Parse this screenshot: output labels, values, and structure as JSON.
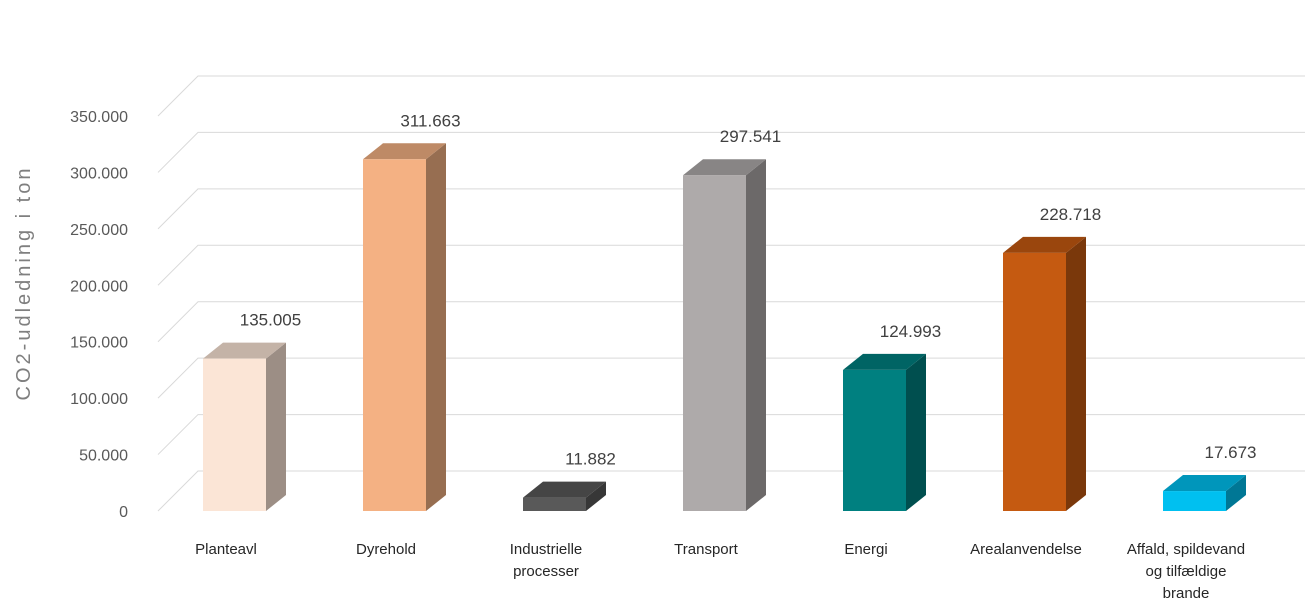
{
  "chart_data": {
    "type": "bar",
    "style": "3d-column",
    "title": "",
    "xlabel": "",
    "ylabel": "CO2-udledning i ton",
    "ylim": [
      0,
      350000
    ],
    "y_ticks": [
      0,
      50000,
      100000,
      150000,
      200000,
      250000,
      300000,
      350000
    ],
    "y_tick_labels": [
      "0",
      "50.000",
      "100.000",
      "150.000",
      "200.000",
      "250.000",
      "300.000",
      "350.000"
    ],
    "grid": true,
    "legend": "none",
    "categories": [
      [
        "Planteavl"
      ],
      [
        "Dyrehold"
      ],
      [
        "Industrielle",
        "processer"
      ],
      [
        "Transport"
      ],
      [
        "Energi"
      ],
      [
        "Arealanvendelse"
      ],
      [
        "Affald, spildevand",
        "og tilfældige",
        "brande"
      ]
    ],
    "values": [
      135005,
      311663,
      11882,
      297541,
      124993,
      228718,
      17673
    ],
    "value_labels": [
      "135.005",
      "311.663",
      "11.882",
      "297.541",
      "124.993",
      "228.718",
      "17.673"
    ],
    "colors": [
      "#fbe5d6",
      "#f4b183",
      "#595959",
      "#aeaaaa",
      "#008080",
      "#c55a11",
      "#00c0f0"
    ]
  }
}
